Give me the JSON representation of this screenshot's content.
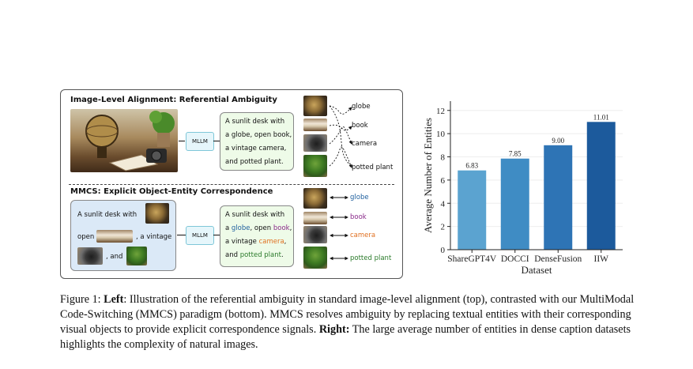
{
  "left_figure": {
    "top_title": "Image-Level Alignment: Referential Ambiguity",
    "bottom_title": "MMCS: Explicit Object-Entity Correspondence",
    "mllm_label": "MLLM",
    "top_caption_lines": [
      "A sunlit desk with",
      "a globe, open book,",
      "a vintage camera,",
      "and potted plant."
    ],
    "top_entities": [
      "globe",
      "book",
      "camera",
      "potted plant"
    ],
    "mmcs_input": {
      "line1": "A sunlit desk with",
      "line2_a": "open",
      "line2_b": ", a vintage",
      "line3": ", and"
    },
    "bottom_caption": {
      "line1": "A sunlit desk with",
      "line2_a": "a ",
      "line2_globe": "globe",
      "line2_b": ", open ",
      "line2_book": "book",
      "line2_c": ",",
      "line3_a": "a vintage ",
      "line3_camera": "camera",
      "line3_b": ",",
      "line4_a": "and ",
      "line4_plant": "potted plant",
      "line4_b": "."
    },
    "bottom_entities": [
      "globe",
      "book",
      "camera",
      "potted plant"
    ],
    "entity_colors": {
      "globe": "#1f5f9e",
      "book": "#8a2a8a",
      "camera": "#e07020",
      "potted plant": "#2a7a2a"
    }
  },
  "chart_data": {
    "type": "bar",
    "categories": [
      "ShareGPT4V",
      "DOCCI",
      "DenseFusion",
      "IIW"
    ],
    "values": [
      6.83,
      7.85,
      9.0,
      11.01
    ],
    "value_labels": [
      "6.83",
      "7.85",
      "9.00",
      "11.01"
    ],
    "xlabel": "Dataset",
    "ylabel": "Average Number of Entities",
    "ylim": [
      0,
      12.8
    ],
    "yticks": [
      0,
      2,
      4,
      6,
      8,
      10,
      12
    ],
    "colors": [
      "#5ba3d0",
      "#3f8cc4",
      "#2e74b5",
      "#1c5a9c"
    ],
    "grid": true
  },
  "caption": {
    "prefix": "Figure 1: ",
    "left_word": "Left",
    "part1": ": Illustration of the referential ambiguity in standard image-level alignment (top), contrasted with our MultiModal Code-Switching (MMCS) paradigm (bottom). MMCS resolves ambiguity by replacing textual entities with their corresponding visual objects to provide explicit correspondence signals. ",
    "right_word": "Right:",
    "part2": " The large average number of entities in dense caption datasets highlights the complexity of natural images."
  }
}
